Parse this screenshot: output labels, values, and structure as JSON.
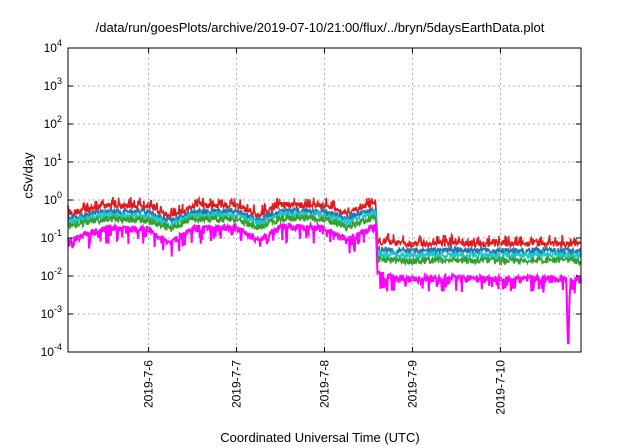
{
  "chart_data": {
    "type": "line",
    "title": "/data/run/goesPlots/archive/2019-07-10/21:00/flux/../bryn/5daysEarthData.plot",
    "xlabel": "Coordinated Universal Time (UTC)",
    "ylabel": "cSv/day",
    "yscale": "log",
    "ylim": [
      "1e-4",
      "1e4"
    ],
    "xlim": [
      "2019-07-05 02:00",
      "2019-07-10 22:00"
    ],
    "x_ticks": [
      "2019-7-6",
      "2019-7-7",
      "2019-7-8",
      "2019-7-9",
      "2019-7-10"
    ],
    "y_ticks": [
      {
        "base": "10",
        "exp": "-4"
      },
      {
        "base": "10",
        "exp": "-3"
      },
      {
        "base": "10",
        "exp": "-2"
      },
      {
        "base": "10",
        "exp": "-1"
      },
      {
        "base": "10",
        "exp": "0"
      },
      {
        "base": "10",
        "exp": "1"
      },
      {
        "base": "10",
        "exp": "2"
      },
      {
        "base": "10",
        "exp": "3"
      },
      {
        "base": "10",
        "exp": "4"
      }
    ],
    "grid": true,
    "series": [
      {
        "color": "#e31a1c",
        "upper": true,
        "x": [
          "2019-07-05 02:00",
          "2019-07-05 12:00",
          "2019-07-06 00:00",
          "2019-07-06 06:00",
          "2019-07-06 12:00",
          "2019-07-07 00:00",
          "2019-07-07 06:00",
          "2019-07-07 12:00",
          "2019-07-08 00:00",
          "2019-07-08 06:00",
          "2019-07-08 14:00",
          "2019-07-08 14:30",
          "2019-07-09 00:00",
          "2019-07-09 12:00",
          "2019-07-10 00:00",
          "2019-07-10 12:00",
          "2019-07-10 22:00"
        ],
        "y": [
          0.45,
          0.75,
          0.7,
          0.38,
          0.7,
          0.72,
          0.42,
          0.78,
          0.72,
          0.48,
          0.8,
          0.085,
          0.07,
          0.075,
          0.07,
          0.075,
          0.07
        ]
      },
      {
        "color": "#1f78b4",
        "x": [
          "2019-07-05 02:00",
          "2019-07-05 12:00",
          "2019-07-06 00:00",
          "2019-07-06 06:00",
          "2019-07-06 12:00",
          "2019-07-07 00:00",
          "2019-07-07 06:00",
          "2019-07-07 12:00",
          "2019-07-08 00:00",
          "2019-07-08 06:00",
          "2019-07-08 14:00",
          "2019-07-08 14:30",
          "2019-07-09 00:00",
          "2019-07-09 12:00",
          "2019-07-10 00:00",
          "2019-07-10 12:00",
          "2019-07-10 22:00"
        ],
        "y": [
          0.32,
          0.5,
          0.48,
          0.28,
          0.5,
          0.5,
          0.3,
          0.52,
          0.5,
          0.33,
          0.55,
          0.05,
          0.045,
          0.048,
          0.045,
          0.048,
          0.045
        ]
      },
      {
        "color": "#1fc8c8",
        "x": [
          "2019-07-05 02:00",
          "2019-07-05 12:00",
          "2019-07-06 00:00",
          "2019-07-06 06:00",
          "2019-07-06 12:00",
          "2019-07-07 00:00",
          "2019-07-07 06:00",
          "2019-07-07 12:00",
          "2019-07-08 00:00",
          "2019-07-08 06:00",
          "2019-07-08 14:00",
          "2019-07-08 14:30",
          "2019-07-09 00:00",
          "2019-07-09 12:00",
          "2019-07-10 00:00",
          "2019-07-10 12:00",
          "2019-07-10 22:00"
        ],
        "y": [
          0.26,
          0.4,
          0.38,
          0.22,
          0.4,
          0.4,
          0.24,
          0.42,
          0.4,
          0.26,
          0.44,
          0.038,
          0.034,
          0.036,
          0.034,
          0.036,
          0.034
        ]
      },
      {
        "color": "#33a02c",
        "x": [
          "2019-07-05 02:00",
          "2019-07-05 12:00",
          "2019-07-06 00:00",
          "2019-07-06 06:00",
          "2019-07-06 12:00",
          "2019-07-07 00:00",
          "2019-07-07 06:00",
          "2019-07-07 12:00",
          "2019-07-08 00:00",
          "2019-07-08 06:00",
          "2019-07-08 14:00",
          "2019-07-08 14:30",
          "2019-07-09 00:00",
          "2019-07-09 12:00",
          "2019-07-10 00:00",
          "2019-07-10 12:00",
          "2019-07-10 22:00"
        ],
        "y": [
          0.21,
          0.32,
          0.3,
          0.18,
          0.32,
          0.32,
          0.19,
          0.34,
          0.32,
          0.2,
          0.35,
          0.028,
          0.025,
          0.027,
          0.025,
          0.027,
          0.025
        ]
      },
      {
        "color": "#ff00ff",
        "lower": true,
        "x": [
          "2019-07-05 02:00",
          "2019-07-05 12:00",
          "2019-07-06 00:00",
          "2019-07-06 06:00",
          "2019-07-06 12:00",
          "2019-07-07 00:00",
          "2019-07-07 06:00",
          "2019-07-07 12:00",
          "2019-07-08 00:00",
          "2019-07-08 06:00",
          "2019-07-08 14:00",
          "2019-07-08 14:30",
          "2019-07-09 00:00",
          "2019-07-09 12:00",
          "2019-07-10 00:00",
          "2019-07-10 12:00",
          "2019-07-10 18:00",
          "2019-07-10 18:30",
          "2019-07-10 19:00",
          "2019-07-10 22:00"
        ],
        "y": [
          0.09,
          0.2,
          0.18,
          0.08,
          0.2,
          0.2,
          0.09,
          0.22,
          0.2,
          0.1,
          0.22,
          0.012,
          0.009,
          0.01,
          0.009,
          0.01,
          0.009,
          0.0001,
          0.009,
          0.009
        ]
      }
    ]
  }
}
